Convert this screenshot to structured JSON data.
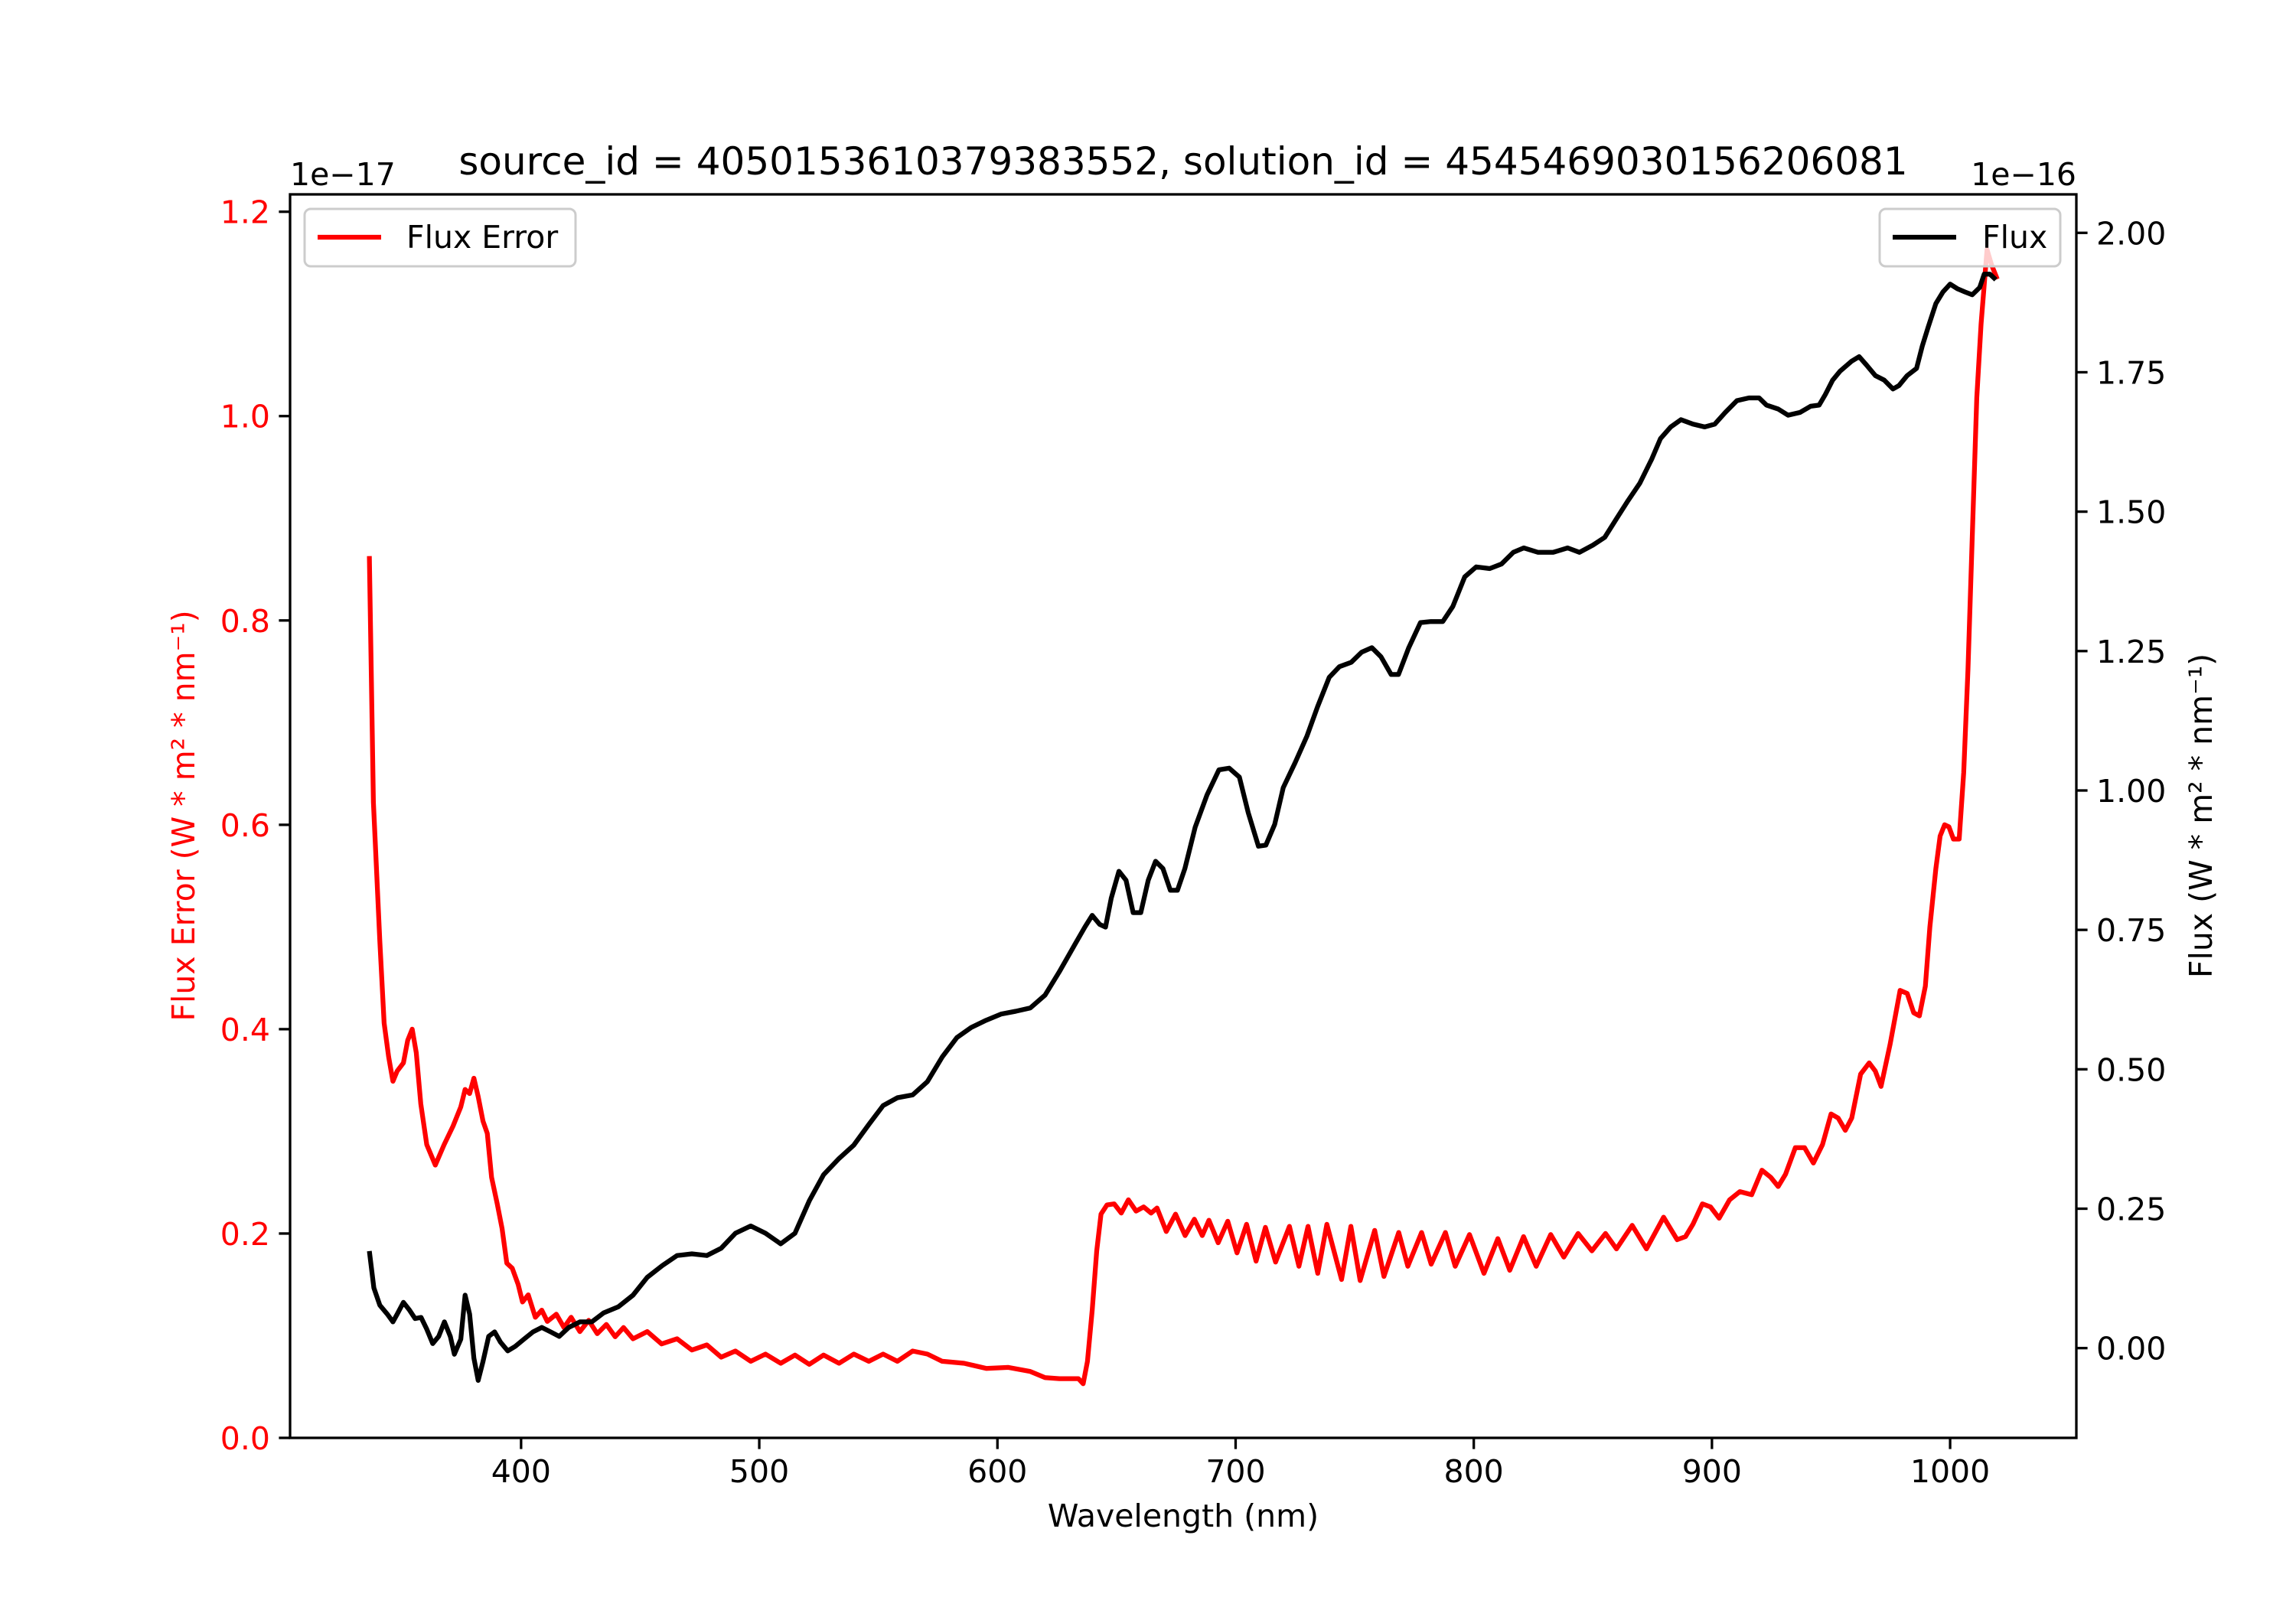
{
  "chart_data": {
    "type": "line",
    "title": "source_id = 4050153610379383552, solution_id = 4545469030156206081",
    "xlabel": "Wavelength (nm)",
    "ylabel_left": "Flux Error (W * m² * nm⁻¹)",
    "ylabel_right": "Flux (W * m² * nm⁻¹)",
    "offset_left": "1e−17",
    "offset_right": "1e−16",
    "xlim": [
      303,
      1053
    ],
    "ylim_left": [
      0,
      1.217
    ],
    "ylim_right": [
      -0.161,
      2.069
    ],
    "xticks": [
      400,
      500,
      600,
      700,
      800,
      900,
      1000
    ],
    "xtick_labels": [
      "400",
      "500",
      "600",
      "700",
      "800",
      "900",
      "1000"
    ],
    "yticks_left": [
      0.0,
      0.2,
      0.4,
      0.6,
      0.8,
      1.0,
      1.2
    ],
    "ytick_labels_left": [
      "0.0",
      "0.2",
      "0.4",
      "0.6",
      "0.8",
      "1.0",
      "1.2"
    ],
    "yticks_right": [
      0.0,
      0.25,
      0.5,
      0.75,
      1.0,
      1.25,
      1.5,
      1.75,
      2.0
    ],
    "ytick_labels_right": [
      "0.00",
      "0.25",
      "0.50",
      "0.75",
      "1.00",
      "1.25",
      "1.50",
      "1.75",
      "2.00"
    ],
    "grid": false,
    "series": [
      {
        "name": "Flux Error",
        "axis": "left",
        "color": "#ff0000",
        "legend": "top-left",
        "x": [
          336.3,
          338,
          340.7,
          342.5,
          344.4,
          346.2,
          348,
          350.6,
          352.4,
          354.3,
          356,
          357.9,
          360.4,
          364,
          367.7,
          371.4,
          374.7,
          376.5,
          378.4,
          380.2,
          382,
          384,
          385.8,
          387.6,
          390,
          392,
          394,
          396.3,
          398.8,
          400.6,
          403,
          406,
          408.7,
          411,
          414.8,
          418,
          421,
          424.7,
          428.4,
          432,
          435.8,
          439.5,
          443,
          447,
          453,
          459,
          465.5,
          471.7,
          478,
          484,
          490,
          496.4,
          502.6,
          509,
          515,
          521,
          527,
          533.5,
          539.7,
          546,
          552,
          558,
          564.4,
          570.6,
          576.8,
          586,
          595.3,
          604.6,
          613.8,
          620,
          626,
          634,
          636,
          637.8,
          639.8,
          641.7,
          643.5,
          646,
          649,
          652,
          655,
          658.2,
          661.4,
          664.5,
          667,
          670.9,
          674.8,
          678.8,
          682.7,
          686,
          688.8,
          692.7,
          696.7,
          700.6,
          704.6,
          708.6,
          712.5,
          716.8,
          722.6,
          726.6,
          730.4,
          734.5,
          738.3,
          744.5,
          748.4,
          752.3,
          758.4,
          762.3,
          768.5,
          772.3,
          778.1,
          782.1,
          788.1,
          792.2,
          798.2,
          804.3,
          810.1,
          815.1,
          820.9,
          826.2,
          832.3,
          837.8,
          843.8,
          849.6,
          855.3,
          859.9,
          866.5,
          872.5,
          879.7,
          885.4,
          888.9,
          892,
          896,
          899.4,
          903,
          907.4,
          911.7,
          916.7,
          921,
          924.7,
          927.8,
          930.9,
          935,
          938.9,
          942.6,
          946.4,
          950,
          953,
          956,
          958.7,
          962.4,
          966,
          968.6,
          971,
          974.8,
          979,
          982,
          984.7,
          987.1,
          989.6,
          991.5,
          994,
          995.8,
          997.7,
          999.5,
          1001.4,
          1003.8,
          1005.7,
          1007.5,
          1009.4,
          1011.2,
          1013,
          1015.5,
          1017.4,
          1019.8
        ],
        "y": [
          0.863,
          0.622,
          0.486,
          0.406,
          0.373,
          0.349,
          0.359,
          0.367,
          0.389,
          0.4,
          0.377,
          0.327,
          0.287,
          0.267,
          0.287,
          0.305,
          0.324,
          0.341,
          0.337,
          0.352,
          0.334,
          0.31,
          0.298,
          0.255,
          0.229,
          0.205,
          0.171,
          0.166,
          0.15,
          0.133,
          0.14,
          0.118,
          0.125,
          0.114,
          0.121,
          0.108,
          0.118,
          0.104,
          0.115,
          0.102,
          0.111,
          0.099,
          0.108,
          0.097,
          0.104,
          0.092,
          0.097,
          0.086,
          0.091,
          0.079,
          0.085,
          0.075,
          0.082,
          0.073,
          0.081,
          0.072,
          0.081,
          0.073,
          0.082,
          0.075,
          0.082,
          0.075,
          0.085,
          0.082,
          0.075,
          0.073,
          0.068,
          0.069,
          0.065,
          0.059,
          0.058,
          0.058,
          0.053,
          0.075,
          0.125,
          0.183,
          0.219,
          0.228,
          0.229,
          0.22,
          0.233,
          0.222,
          0.226,
          0.22,
          0.225,
          0.202,
          0.219,
          0.198,
          0.214,
          0.198,
          0.213,
          0.191,
          0.212,
          0.181,
          0.209,
          0.173,
          0.206,
          0.172,
          0.207,
          0.168,
          0.207,
          0.161,
          0.209,
          0.155,
          0.207,
          0.154,
          0.203,
          0.158,
          0.201,
          0.168,
          0.201,
          0.17,
          0.201,
          0.168,
          0.199,
          0.161,
          0.195,
          0.164,
          0.197,
          0.168,
          0.199,
          0.177,
          0.2,
          0.183,
          0.2,
          0.185,
          0.208,
          0.185,
          0.216,
          0.194,
          0.197,
          0.209,
          0.229,
          0.226,
          0.215,
          0.233,
          0.241,
          0.238,
          0.262,
          0.255,
          0.246,
          0.258,
          0.284,
          0.284,
          0.269,
          0.287,
          0.317,
          0.313,
          0.301,
          0.313,
          0.356,
          0.367,
          0.359,
          0.344,
          0.385,
          0.438,
          0.435,
          0.416,
          0.413,
          0.442,
          0.5,
          0.557,
          0.589,
          0.6,
          0.598,
          0.586,
          0.586,
          0.651,
          0.752,
          0.889,
          1.018,
          1.09,
          1.163,
          1.148,
          1.134
        ]
      },
      {
        "name": "Flux",
        "axis": "right",
        "color": "#000000",
        "legend": "top-right",
        "x": [
          336.3,
          338.2,
          340.7,
          343.8,
          346.2,
          348,
          350.6,
          353,
          355.5,
          358,
          360.4,
          362.9,
          365.4,
          367.8,
          370.3,
          372,
          374.7,
          376.5,
          378.4,
          380.2,
          382,
          384,
          386.4,
          388.9,
          391.3,
          394.4,
          397.5,
          401.2,
          405,
          408.7,
          412.4,
          416,
          420,
          424.7,
          429.7,
          434.6,
          440.8,
          447,
          453,
          459.3,
          465.5,
          471.7,
          478,
          484,
          490,
          496.4,
          502.6,
          509,
          515,
          521,
          527,
          533.5,
          539.7,
          546,
          552,
          558,
          564.4,
          570.6,
          576.8,
          583,
          589,
          595.3,
          601.5,
          607.7,
          613.8,
          620,
          626,
          632.4,
          636.7,
          639.8,
          642.9,
          645.4,
          647.8,
          651,
          654,
          657,
          660.2,
          663.3,
          666.4,
          669.5,
          672.6,
          675.6,
          678.7,
          683,
          688,
          693,
          697.3,
          701.6,
          705.3,
          709.6,
          712.7,
          716.4,
          720,
          725,
          730,
          734.4,
          739.3,
          743.6,
          748.6,
          752.9,
          757.2,
          761,
          765.3,
          768.4,
          772.7,
          777.6,
          782,
          787,
          791.2,
          796.2,
          801,
          806.7,
          811.6,
          816.6,
          821,
          827,
          833.3,
          839.4,
          844.4,
          850,
          855,
          860,
          864.8,
          869.7,
          874.7,
          878.4,
          882.7,
          887,
          892,
          897,
          901.2,
          905.6,
          910.5,
          915.5,
          919.8,
          922.9,
          927.8,
          932,
          937,
          941.4,
          945,
          947.6,
          950.7,
          953.8,
          958.7,
          961.8,
          964.9,
          968.6,
          972.3,
          976,
          978.5,
          982,
          985.9,
          988.3,
          990.8,
          994,
          997,
          1000,
          1003,
          1006.2,
          1009.3,
          1012.4,
          1014.3,
          1016.7,
          1019.2
        ],
        "y": [
          0.174,
          0.108,
          0.077,
          0.061,
          0.047,
          0.061,
          0.082,
          0.069,
          0.053,
          0.055,
          0.034,
          0.008,
          0.021,
          0.047,
          0.021,
          -0.011,
          0.016,
          0.095,
          0.061,
          -0.018,
          -0.058,
          -0.024,
          0.021,
          0.029,
          0.011,
          -0.005,
          0.003,
          0.016,
          0.029,
          0.037,
          0.029,
          0.021,
          0.037,
          0.047,
          0.047,
          0.063,
          0.074,
          0.095,
          0.127,
          0.148,
          0.166,
          0.169,
          0.166,
          0.179,
          0.206,
          0.219,
          0.206,
          0.187,
          0.206,
          0.264,
          0.311,
          0.34,
          0.364,
          0.401,
          0.435,
          0.449,
          0.454,
          0.478,
          0.522,
          0.557,
          0.575,
          0.588,
          0.599,
          0.604,
          0.61,
          0.633,
          0.675,
          0.723,
          0.755,
          0.776,
          0.76,
          0.755,
          0.807,
          0.855,
          0.839,
          0.781,
          0.781,
          0.839,
          0.873,
          0.86,
          0.821,
          0.821,
          0.86,
          0.934,
          0.992,
          1.037,
          1.04,
          1.024,
          0.96,
          0.9,
          0.902,
          0.939,
          1.005,
          1.05,
          1.098,
          1.15,
          1.203,
          1.222,
          1.23,
          1.248,
          1.256,
          1.24,
          1.208,
          1.208,
          1.256,
          1.301,
          1.303,
          1.303,
          1.33,
          1.383,
          1.401,
          1.398,
          1.406,
          1.427,
          1.435,
          1.427,
          1.427,
          1.435,
          1.427,
          1.44,
          1.454,
          1.488,
          1.52,
          1.551,
          1.594,
          1.631,
          1.652,
          1.665,
          1.657,
          1.652,
          1.657,
          1.678,
          1.699,
          1.704,
          1.704,
          1.691,
          1.684,
          1.673,
          1.678,
          1.689,
          1.691,
          1.71,
          1.736,
          1.752,
          1.77,
          1.778,
          1.763,
          1.744,
          1.736,
          1.72,
          1.726,
          1.744,
          1.757,
          1.797,
          1.831,
          1.873,
          1.894,
          1.908,
          1.9,
          1.894,
          1.889,
          1.902,
          1.926,
          1.926,
          1.916
        ]
      }
    ]
  }
}
